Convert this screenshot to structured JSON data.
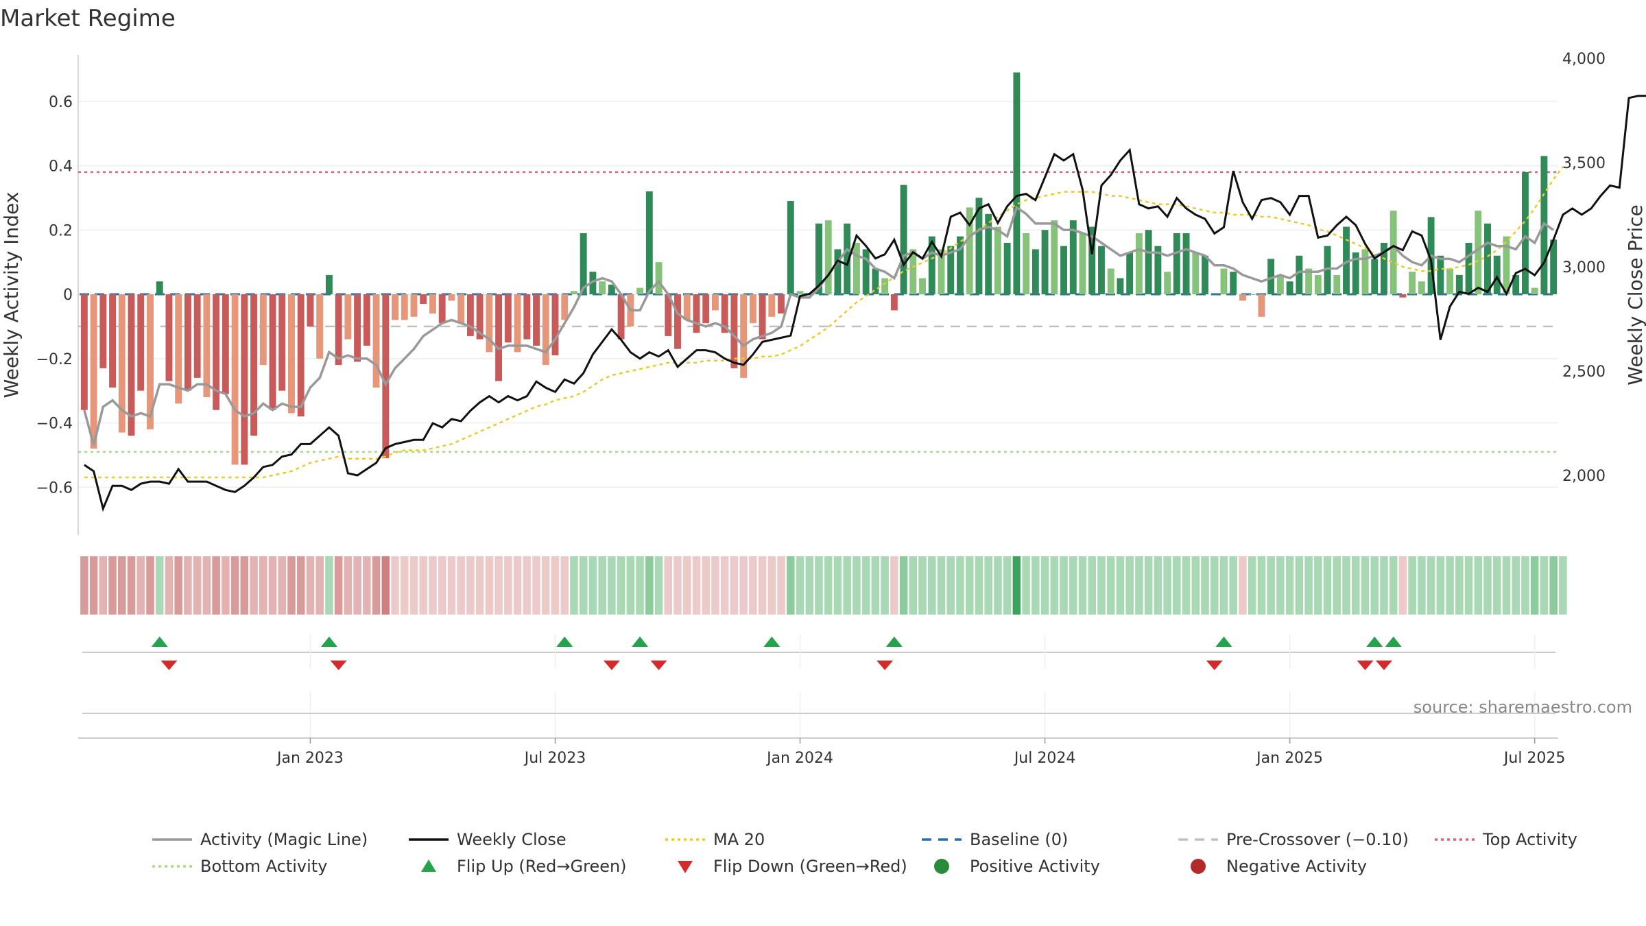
{
  "chart_data": {
    "type": "bar",
    "title": "Market Regime",
    "ylabel": "Weekly Activity Index",
    "y2label": "Weekly Close Price",
    "ylim": [
      -0.75,
      0.75
    ],
    "y2lim": [
      1700,
      4000
    ],
    "yticks": [
      -0.6,
      -0.4,
      -0.2,
      0,
      0.2,
      0.4,
      0.6
    ],
    "ytick_labels": [
      "−0.6",
      "−0.4",
      "−0.2",
      "0",
      "0.2",
      "0.4",
      "0.6"
    ],
    "y2ticks": [
      2000,
      2500,
      3000,
      3500,
      4000
    ],
    "y2tick_labels": [
      "2,000",
      "2,500",
      "3,000",
      "3,500",
      "4,000"
    ],
    "xticks": [
      "Jan 2023",
      "Jul 2023",
      "Jan 2024",
      "Jul 2024",
      "Jan 2025",
      "Jul 2025"
    ],
    "xtick_positions": [
      24.5,
      50.5,
      76.5,
      102.5,
      128.5,
      154.5
    ],
    "n_weeks": 157,
    "top_activity": 0.38,
    "bottom_activity": -0.49,
    "pre_crossover": -0.1,
    "baseline": 0,
    "activity": [
      -0.36,
      -0.48,
      -0.23,
      -0.29,
      -0.43,
      -0.44,
      -0.3,
      -0.42,
      0.04,
      -0.27,
      -0.34,
      -0.3,
      -0.26,
      -0.32,
      -0.36,
      -0.31,
      -0.53,
      -0.53,
      -0.44,
      -0.22,
      -0.36,
      -0.3,
      -0.37,
      -0.38,
      -0.1,
      -0.2,
      0.06,
      -0.22,
      -0.14,
      -0.21,
      -0.16,
      -0.29,
      -0.51,
      -0.08,
      -0.08,
      -0.07,
      -0.03,
      -0.06,
      -0.09,
      -0.02,
      -0.09,
      -0.13,
      -0.14,
      -0.18,
      -0.27,
      -0.15,
      -0.18,
      -0.14,
      -0.16,
      -0.22,
      -0.19,
      -0.08,
      0.01,
      0.19,
      0.07,
      0.04,
      0.03,
      -0.14,
      -0.1,
      0.02,
      0.32,
      0.1,
      -0.13,
      -0.17,
      -0.08,
      -0.12,
      -0.09,
      -0.05,
      -0.12,
      -0.23,
      -0.26,
      -0.09,
      -0.14,
      -0.07,
      -0.06,
      0.29,
      0.01,
      0.0,
      0.22,
      0.23,
      0.14,
      0.22,
      0.16,
      0.14,
      0.08,
      0.05,
      -0.05,
      0.34,
      0.14,
      0.05,
      0.18,
      0.14,
      0.15,
      0.18,
      0.27,
      0.3,
      0.25,
      0.21,
      0.16,
      0.69,
      0.19,
      0.14,
      0.2,
      0.23,
      0.15,
      0.23,
      0.19,
      0.21,
      0.15,
      0.08,
      0.05,
      0.13,
      0.19,
      0.2,
      0.15,
      0.07,
      0.19,
      0.19,
      0.13,
      0.12,
      0.0,
      0.08,
      0.07,
      -0.02,
      0.0,
      -0.07,
      0.11,
      0.06,
      0.04,
      0.12,
      0.08,
      0.06,
      0.15,
      0.06,
      0.21,
      0.13,
      0.14,
      0.11,
      0.16,
      0.26,
      -0.01,
      0.07,
      0.04,
      0.24,
      0.12,
      0.08,
      0.06,
      0.16,
      0.26,
      0.22,
      0.12,
      0.18,
      0.06,
      0.38,
      0.02,
      0.43,
      0.17
    ],
    "magic_line": [
      -0.36,
      -0.47,
      -0.35,
      -0.33,
      -0.36,
      -0.38,
      -0.37,
      -0.38,
      -0.28,
      -0.28,
      -0.29,
      -0.3,
      -0.28,
      -0.28,
      -0.3,
      -0.31,
      -0.36,
      -0.38,
      -0.37,
      -0.34,
      -0.36,
      -0.34,
      -0.35,
      -0.35,
      -0.29,
      -0.26,
      -0.18,
      -0.2,
      -0.19,
      -0.2,
      -0.2,
      -0.22,
      -0.28,
      -0.23,
      -0.2,
      -0.17,
      -0.13,
      -0.11,
      -0.09,
      -0.08,
      -0.09,
      -0.1,
      -0.12,
      -0.14,
      -0.17,
      -0.16,
      -0.16,
      -0.16,
      -0.17,
      -0.18,
      -0.14,
      -0.09,
      -0.04,
      0.02,
      0.04,
      0.05,
      0.04,
      0.0,
      -0.05,
      -0.05,
      0.01,
      0.04,
      0.0,
      -0.06,
      -0.08,
      -0.09,
      -0.1,
      -0.09,
      -0.1,
      -0.13,
      -0.16,
      -0.14,
      -0.13,
      -0.12,
      -0.1,
      0.0,
      -0.01,
      -0.01,
      0.02,
      0.06,
      0.1,
      0.14,
      0.12,
      0.11,
      0.08,
      0.07,
      0.05,
      0.12,
      0.13,
      0.11,
      0.13,
      0.12,
      0.13,
      0.14,
      0.18,
      0.2,
      0.21,
      0.2,
      0.18,
      0.27,
      0.25,
      0.22,
      0.22,
      0.22,
      0.2,
      0.2,
      0.19,
      0.18,
      0.16,
      0.14,
      0.12,
      0.13,
      0.14,
      0.13,
      0.13,
      0.12,
      0.13,
      0.14,
      0.13,
      0.12,
      0.09,
      0.09,
      0.08,
      0.06,
      0.05,
      0.04,
      0.05,
      0.06,
      0.05,
      0.07,
      0.07,
      0.07,
      0.08,
      0.08,
      0.1,
      0.11,
      0.11,
      0.12,
      0.13,
      0.15,
      0.12,
      0.1,
      0.09,
      0.12,
      0.11,
      0.11,
      0.1,
      0.12,
      0.14,
      0.16,
      0.15,
      0.15,
      0.14,
      0.18,
      0.16,
      0.22,
      0.2
    ],
    "weekly_close": [
      2050,
      2020,
      1840,
      1950,
      1950,
      1930,
      1960,
      1970,
      1970,
      1960,
      2030,
      1970,
      1970,
      1970,
      1950,
      1930,
      1920,
      1950,
      1990,
      2040,
      2050,
      2090,
      2100,
      2150,
      2150,
      2190,
      2230,
      2190,
      2010,
      2000,
      2030,
      2060,
      2130,
      2150,
      2160,
      2170,
      2170,
      2250,
      2230,
      2270,
      2260,
      2310,
      2350,
      2380,
      2350,
      2380,
      2360,
      2380,
      2450,
      2420,
      2400,
      2460,
      2440,
      2490,
      2580,
      2640,
      2700,
      2650,
      2590,
      2560,
      2590,
      2570,
      2600,
      2520,
      2560,
      2600,
      2600,
      2590,
      2560,
      2540,
      2530,
      2580,
      2640,
      2650,
      2660,
      2670,
      2860,
      2870,
      2910,
      2960,
      3030,
      3010,
      3150,
      3100,
      3040,
      3060,
      3130,
      3010,
      3070,
      3040,
      3120,
      3050,
      3240,
      3260,
      3200,
      3280,
      3300,
      3210,
      3290,
      3340,
      3350,
      3320,
      3430,
      3540,
      3510,
      3540,
      3370,
      3060,
      3390,
      3440,
      3510,
      3560,
      3300,
      3280,
      3290,
      3240,
      3330,
      3280,
      3250,
      3230,
      3160,
      3190,
      3460,
      3310,
      3230,
      3320,
      3330,
      3310,
      3250,
      3340,
      3340,
      3140,
      3150,
      3200,
      3240,
      3200,
      3110,
      3040,
      3070,
      3100,
      3080,
      3170,
      3150,
      3030,
      2650,
      2810,
      2880,
      2870,
      2900,
      2880,
      2950,
      2870,
      2970,
      2990,
      2960,
      3020,
      3130,
      3250,
      3280,
      3250,
      3280,
      3340,
      3390,
      3380,
      3810,
      3820,
      3820,
      3820,
      3880
    ],
    "ma20": [
      1990,
      1990,
      1990,
      1990,
      1990,
      1990,
      1990,
      1990,
      1990,
      1990,
      1990,
      1990,
      1990,
      1990,
      1990,
      1990,
      1990,
      1990,
      1990,
      1990,
      2000,
      2010,
      2020,
      2040,
      2060,
      2070,
      2080,
      2090,
      2080,
      2080,
      2080,
      2080,
      2090,
      2110,
      2120,
      2120,
      2120,
      2130,
      2140,
      2150,
      2170,
      2190,
      2210,
      2230,
      2250,
      2270,
      2290,
      2310,
      2330,
      2340,
      2360,
      2370,
      2380,
      2400,
      2430,
      2460,
      2480,
      2490,
      2500,
      2510,
      2520,
      2530,
      2540,
      2540,
      2540,
      2540,
      2550,
      2550,
      2550,
      2560,
      2560,
      2560,
      2570,
      2570,
      2580,
      2600,
      2620,
      2650,
      2680,
      2710,
      2750,
      2790,
      2830,
      2860,
      2890,
      2920,
      2950,
      2980,
      3000,
      3020,
      3040,
      3060,
      3090,
      3120,
      3150,
      3180,
      3210,
      3240,
      3270,
      3300,
      3320,
      3330,
      3340,
      3350,
      3360,
      3360,
      3360,
      3360,
      3350,
      3340,
      3340,
      3330,
      3320,
      3310,
      3300,
      3300,
      3300,
      3290,
      3280,
      3270,
      3260,
      3260,
      3250,
      3250,
      3250,
      3240,
      3240,
      3230,
      3220,
      3210,
      3200,
      3180,
      3170,
      3150,
      3130,
      3110,
      3090,
      3060,
      3040,
      3020,
      3000,
      2990,
      2980,
      2980,
      2990,
      2990,
      3000,
      3010,
      3030,
      3050,
      3080,
      3120,
      3170,
      3220,
      3280,
      3350,
      3420,
      3480
    ],
    "regime_strip": [
      "RD",
      "RD",
      "RM",
      "RD",
      "RD",
      "RD",
      "RM",
      "RD",
      "GP",
      "RM",
      "RD",
      "RM",
      "RM",
      "RM",
      "RD",
      "RM",
      "RD",
      "RD",
      "RM",
      "RM",
      "RM",
      "RM",
      "RD",
      "RD",
      "RM",
      "RM",
      "GP",
      "RD",
      "RM",
      "RM",
      "RM",
      "RD",
      "RX",
      "RP",
      "RP",
      "RP",
      "RP",
      "RP",
      "RP",
      "RP",
      "RP",
      "RP",
      "RP",
      "RP",
      "RP",
      "RP",
      "RP",
      "RP",
      "RP",
      "RP",
      "RP",
      "RP",
      "GP",
      "GP",
      "GP",
      "GP",
      "GP",
      "GP",
      "GP",
      "GP",
      "GM",
      "GP",
      "RP",
      "RP",
      "RP",
      "RP",
      "RP",
      "RP",
      "RP",
      "RP",
      "RP",
      "RP",
      "RP",
      "RP",
      "RP",
      "GM",
      "GP",
      "GP",
      "GP",
      "GP",
      "GP",
      "GP",
      "GP",
      "GP",
      "GP",
      "GP",
      "RP",
      "GM",
      "GP",
      "GP",
      "GP",
      "GP",
      "GP",
      "GP",
      "GP",
      "GP",
      "GP",
      "GP",
      "GP",
      "GX",
      "GP",
      "GP",
      "GP",
      "GP",
      "GP",
      "GP",
      "GP",
      "GP",
      "GP",
      "GP",
      "GP",
      "GP",
      "GP",
      "GP",
      "GP",
      "GP",
      "GP",
      "GP",
      "GP",
      "GP",
      "GP",
      "GP",
      "GP",
      "RP",
      "GP",
      "GP",
      "GP",
      "GP",
      "GP",
      "GP",
      "GP",
      "GP",
      "GP",
      "GP",
      "GP",
      "GP",
      "GP",
      "GP",
      "GP",
      "GP",
      "RP",
      "GP",
      "GP",
      "GP",
      "GP",
      "GP",
      "GP",
      "GP",
      "GP",
      "GP",
      "GP",
      "GP",
      "GP",
      "GP",
      "GM",
      "GP",
      "GM",
      "GP"
    ],
    "flip_up": [
      8,
      26,
      51,
      59,
      73,
      86,
      121,
      137,
      139
    ],
    "flip_down": [
      9,
      27,
      56,
      61,
      85,
      120,
      136,
      138
    ],
    "colors": {
      "bar_red_dark": "#c95a5a",
      "bar_red_light": "#e6977a",
      "bar_green_dark": "#2f8a58",
      "bar_green_light": "#86c27a",
      "magic_line": "#999999",
      "weekly_close": "#111111",
      "ma20": "#e8cc2a",
      "baseline": "#2c6fa6",
      "pre_crossover": "#c0c0c0",
      "top_activity": "#d9647a",
      "bottom_activity": "#a8d88a",
      "flip_up": "#23a34a",
      "flip_down": "#d62a2a",
      "positive": "#2a8c3a",
      "negative": "#b22a2a",
      "strip": {
        "RD": "#d99a9a",
        "RM": "#e3b2b2",
        "RP": "#edcaca",
        "RX": "#cf7f7f",
        "GP": "#a8d8b4",
        "GM": "#8ecb9c",
        "GX": "#3aa55a"
      }
    },
    "source": "source: sharemaestro.com",
    "legend": [
      {
        "label": "Activity (Magic Line)",
        "kind": "line",
        "style": "solid",
        "color": "#999999"
      },
      {
        "label": "Weekly Close",
        "kind": "line",
        "style": "solid",
        "color": "#111111"
      },
      {
        "label": "MA 20",
        "kind": "line",
        "style": "dot",
        "color": "#e8cc2a"
      },
      {
        "label": "Baseline (0)",
        "kind": "line",
        "style": "dash",
        "color": "#2c6fa6"
      },
      {
        "label": "Pre-Crossover (−0.10)",
        "kind": "line",
        "style": "dash",
        "color": "#c0c0c0"
      },
      {
        "label": "Top Activity",
        "kind": "line",
        "style": "dot",
        "color": "#d9647a"
      },
      {
        "label": "Bottom Activity",
        "kind": "line",
        "style": "dot",
        "color": "#a8d88a"
      },
      {
        "label": "Flip Up (Red→Green)",
        "kind": "tri-up",
        "color": "#23a34a"
      },
      {
        "label": "Flip Down (Green→Red)",
        "kind": "tri-down",
        "color": "#d62a2a"
      },
      {
        "label": "Positive Activity",
        "kind": "circle",
        "color": "#2a8c3a"
      },
      {
        "label": "Negative Activity",
        "kind": "circle",
        "color": "#b22a2a"
      }
    ]
  }
}
